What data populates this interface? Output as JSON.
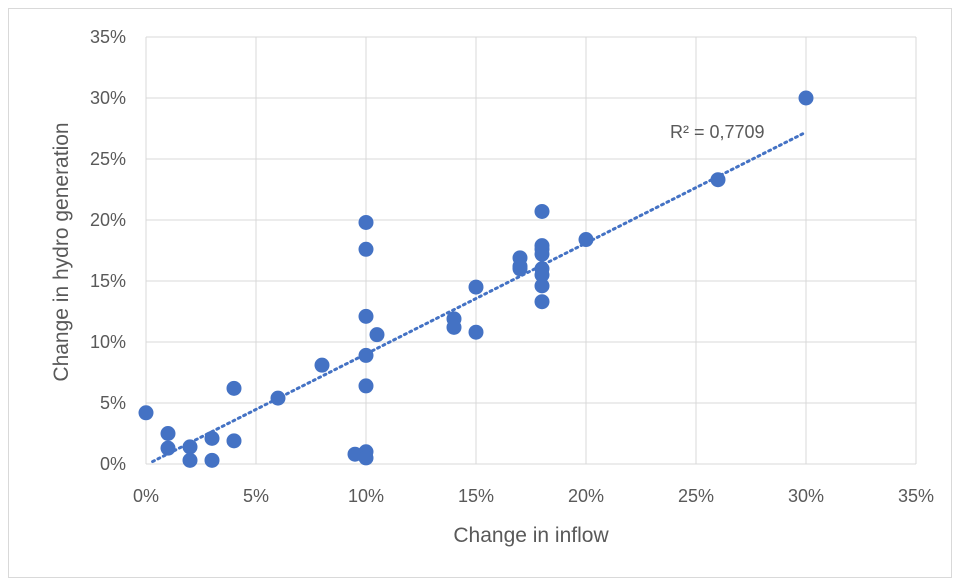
{
  "chart_data": {
    "type": "scatter",
    "title": "",
    "xlabel": "Change in inflow",
    "ylabel": "Change in hydro generation",
    "xlim": [
      0,
      0.35
    ],
    "ylim": [
      0,
      0.35
    ],
    "x_ticks": [
      "0%",
      "5%",
      "10%",
      "15%",
      "20%",
      "25%",
      "30%",
      "35%"
    ],
    "y_ticks": [
      "0%",
      "5%",
      "10%",
      "15%",
      "20%",
      "25%",
      "30%",
      "35%"
    ],
    "grid": true,
    "legend": "none",
    "marker_color": "#4472c4",
    "trendline": {
      "type": "linear",
      "style": "dotted",
      "color": "#4472c4",
      "x_range": [
        0.003,
        0.3
      ],
      "y_range": [
        0.002,
        0.272
      ],
      "label": "R² = 0,7709"
    },
    "points": [
      {
        "x": 0.0,
        "y": 0.042
      },
      {
        "x": 0.01,
        "y": 0.025
      },
      {
        "x": 0.01,
        "y": 0.013
      },
      {
        "x": 0.02,
        "y": 0.014
      },
      {
        "x": 0.02,
        "y": 0.003
      },
      {
        "x": 0.03,
        "y": 0.021
      },
      {
        "x": 0.03,
        "y": 0.003
      },
      {
        "x": 0.04,
        "y": 0.062
      },
      {
        "x": 0.04,
        "y": 0.019
      },
      {
        "x": 0.06,
        "y": 0.054
      },
      {
        "x": 0.08,
        "y": 0.081
      },
      {
        "x": 0.095,
        "y": 0.008
      },
      {
        "x": 0.1,
        "y": 0.198
      },
      {
        "x": 0.1,
        "y": 0.176
      },
      {
        "x": 0.1,
        "y": 0.121
      },
      {
        "x": 0.1,
        "y": 0.089
      },
      {
        "x": 0.1,
        "y": 0.064
      },
      {
        "x": 0.1,
        "y": 0.01
      },
      {
        "x": 0.1,
        "y": 0.005
      },
      {
        "x": 0.105,
        "y": 0.106
      },
      {
        "x": 0.14,
        "y": 0.119
      },
      {
        "x": 0.14,
        "y": 0.112
      },
      {
        "x": 0.15,
        "y": 0.145
      },
      {
        "x": 0.15,
        "y": 0.108
      },
      {
        "x": 0.17,
        "y": 0.169
      },
      {
        "x": 0.17,
        "y": 0.162
      },
      {
        "x": 0.17,
        "y": 0.16
      },
      {
        "x": 0.18,
        "y": 0.207
      },
      {
        "x": 0.18,
        "y": 0.179
      },
      {
        "x": 0.18,
        "y": 0.176
      },
      {
        "x": 0.18,
        "y": 0.172
      },
      {
        "x": 0.18,
        "y": 0.16
      },
      {
        "x": 0.18,
        "y": 0.155
      },
      {
        "x": 0.18,
        "y": 0.146
      },
      {
        "x": 0.18,
        "y": 0.133
      },
      {
        "x": 0.2,
        "y": 0.184
      },
      {
        "x": 0.26,
        "y": 0.233
      },
      {
        "x": 0.3,
        "y": 0.3
      }
    ]
  }
}
